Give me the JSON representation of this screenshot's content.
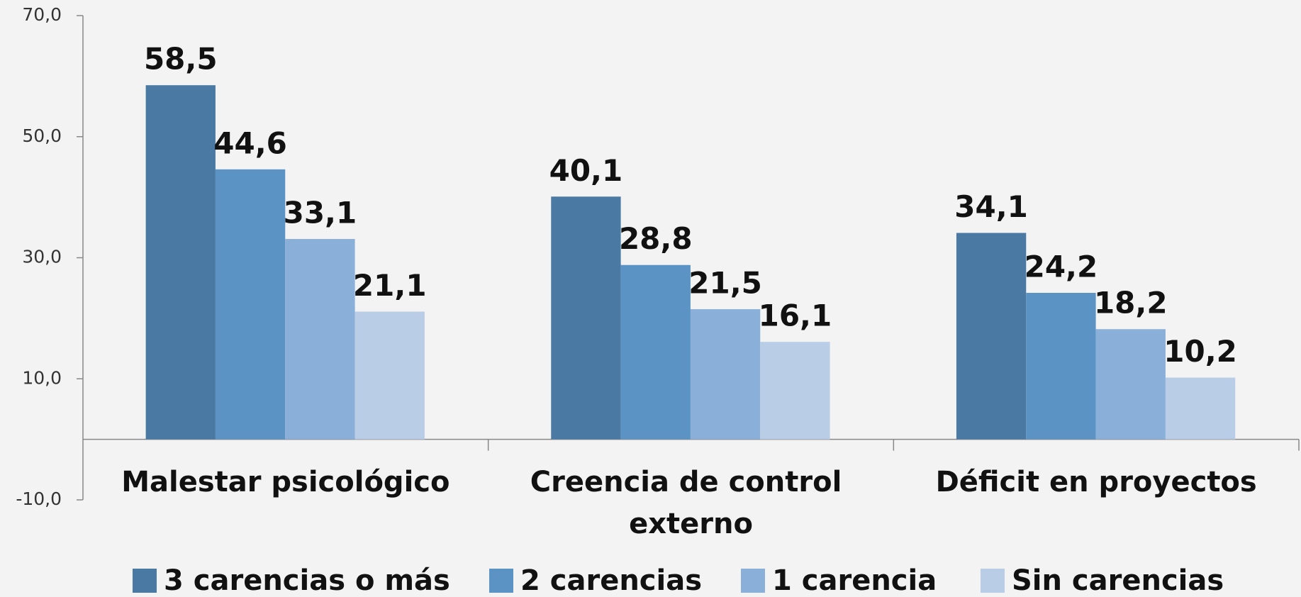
{
  "chart_data": {
    "type": "bar",
    "categories": [
      "Malestar psicológico",
      "Creencia de control externo",
      "Déficit en proyectos"
    ],
    "series": [
      {
        "name": "3 carencias o más",
        "color": "#4a7aa4",
        "values": [
          58.5,
          40.1,
          34.1
        ],
        "value_labels": [
          "58,5",
          "40,1",
          "34,1"
        ]
      },
      {
        "name": "2 carencias",
        "color": "#5b93c4",
        "values": [
          44.6,
          28.8,
          24.2
        ],
        "value_labels": [
          "44,6",
          "28,8",
          "24,2"
        ]
      },
      {
        "name": "1 carencia",
        "color": "#8aafd8",
        "values": [
          33.1,
          21.5,
          18.2
        ],
        "value_labels": [
          "33,1",
          "21,5",
          "18,2"
        ]
      },
      {
        "name": "Sin carencias",
        "color": "#b9cde6",
        "values": [
          21.1,
          16.1,
          10.2
        ],
        "value_labels": [
          "21,1",
          "16,1",
          "10,2"
        ]
      }
    ],
    "ylim": [
      -10,
      70
    ],
    "yticks": [
      {
        "value": -10,
        "label": "-10,0"
      },
      {
        "value": 10,
        "label": "10,0"
      },
      {
        "value": 30,
        "label": "30,0"
      },
      {
        "value": 50,
        "label": "50,0"
      },
      {
        "value": 70,
        "label": "70,0"
      }
    ],
    "legend": "bottom"
  }
}
